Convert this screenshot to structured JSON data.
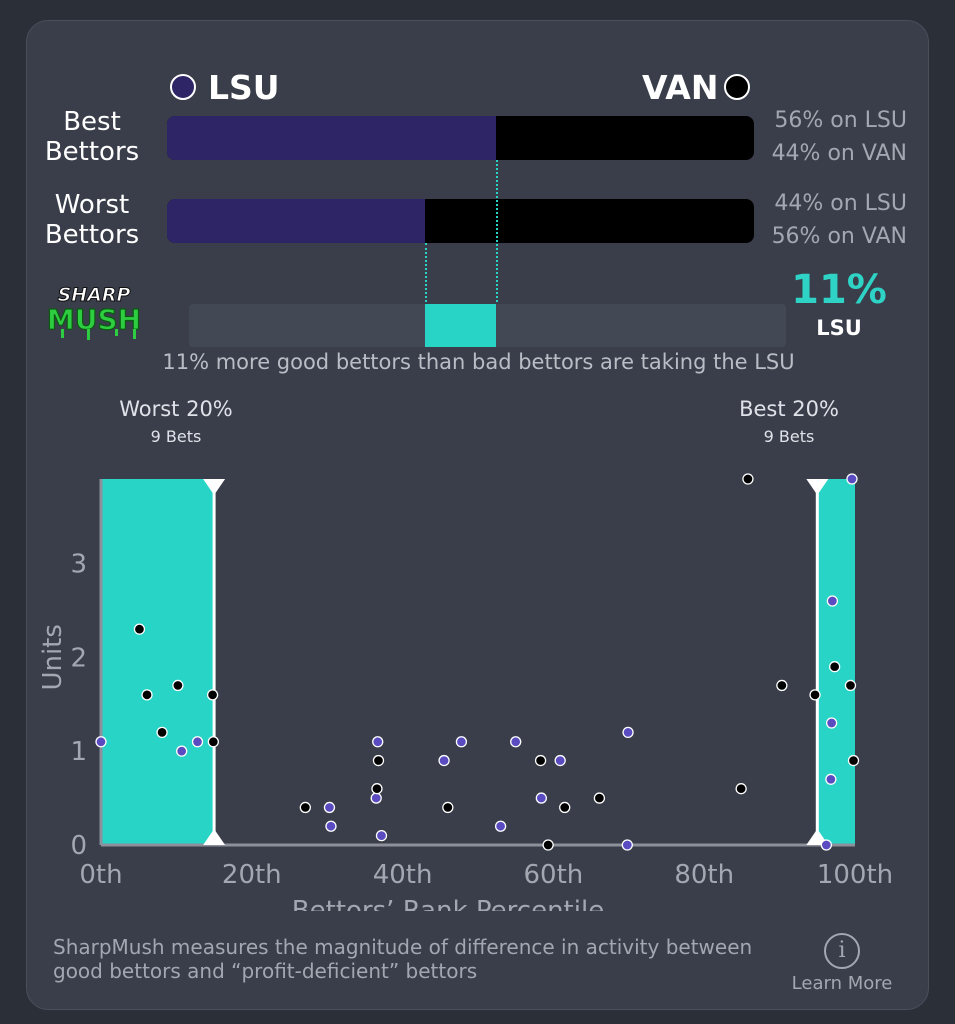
{
  "teams": {
    "left": {
      "name": "LSU",
      "color": "#2e2566"
    },
    "right": {
      "name": "VAN",
      "color": "#000000"
    }
  },
  "rows": [
    {
      "label": "Best\nBettors",
      "left_pct": 0.56,
      "left_text": "56% on LSU",
      "right_text": "44% on VAN"
    },
    {
      "label": "Worst\nBettors",
      "left_pct": 0.44,
      "left_text": "44% on LSU",
      "right_text": "56% on VAN"
    }
  ],
  "sharpmush": {
    "logo_top": "SHARP",
    "logo_bottom": "MUSH",
    "value": "11%",
    "team": "LSU",
    "caption": "11% more good bettors than bad bettors are taking the LSU",
    "accent": "#27d4c5"
  },
  "zones": {
    "worst": {
      "title": "Worst 20%",
      "sub": "9 Bets"
    },
    "best": {
      "title": "Best 20%",
      "sub": "9 Bets"
    }
  },
  "chart_data": {
    "type": "scatter",
    "xlabel": "Bettors’ Rank Percentile",
    "ylabel": "Units",
    "xlim": [
      0,
      100
    ],
    "ylim": [
      0,
      3.9
    ],
    "xticks": [
      0,
      20,
      40,
      60,
      80,
      100
    ],
    "xtick_labels": [
      "0th",
      "20th",
      "40th",
      "60th",
      "80th",
      "100th"
    ],
    "yticks": [
      0,
      1,
      2,
      3
    ],
    "yticklabels": [
      "0",
      "1",
      "2",
      "3"
    ],
    "highlight_ranges": [
      [
        0,
        15
      ],
      [
        95,
        100
      ]
    ],
    "series": [
      {
        "name": "LSU",
        "color": "#5a4cc0",
        "points": [
          [
            0,
            1.1
          ],
          [
            10.7,
            1.0
          ],
          [
            12.8,
            1.1
          ],
          [
            30.3,
            0.4
          ],
          [
            30.5,
            0.2
          ],
          [
            36.5,
            0.5
          ],
          [
            36.7,
            1.1
          ],
          [
            37.2,
            0.1
          ],
          [
            45.5,
            0.9
          ],
          [
            47.8,
            1.1
          ],
          [
            53,
            0.2
          ],
          [
            55,
            1.1
          ],
          [
            58.4,
            0.5
          ],
          [
            60.9,
            0.9
          ],
          [
            69.8,
            0
          ],
          [
            69.9,
            1.2
          ],
          [
            96.2,
            0
          ],
          [
            96.8,
            0.7
          ],
          [
            96.9,
            1.3
          ],
          [
            97,
            2.6
          ],
          [
            99.6,
            3.9
          ]
        ]
      },
      {
        "name": "VAN",
        "color": "#000000",
        "points": [
          [
            5.1,
            2.3
          ],
          [
            6.1,
            1.6
          ],
          [
            8.1,
            1.2
          ],
          [
            10.2,
            1.7
          ],
          [
            14.8,
            1.6
          ],
          [
            14.9,
            1.1
          ],
          [
            27.1,
            0.4
          ],
          [
            36.6,
            0.6
          ],
          [
            36.8,
            0.9
          ],
          [
            46,
            0.4
          ],
          [
            58.3,
            0.9
          ],
          [
            59.3,
            0
          ],
          [
            61.5,
            0.4
          ],
          [
            66.1,
            0.5
          ],
          [
            84.9,
            0.6
          ],
          [
            85.8,
            3.9
          ],
          [
            90.3,
            1.7
          ],
          [
            94.7,
            1.6
          ],
          [
            97.3,
            1.9
          ],
          [
            99.4,
            1.7
          ],
          [
            99.8,
            0.9
          ]
        ]
      }
    ]
  },
  "footer": {
    "text": "SharpMush measures the magnitude of difference in activity between good bettors and “profit-deficient” bettors",
    "learn_more": "Learn More",
    "info_glyph": "i"
  }
}
